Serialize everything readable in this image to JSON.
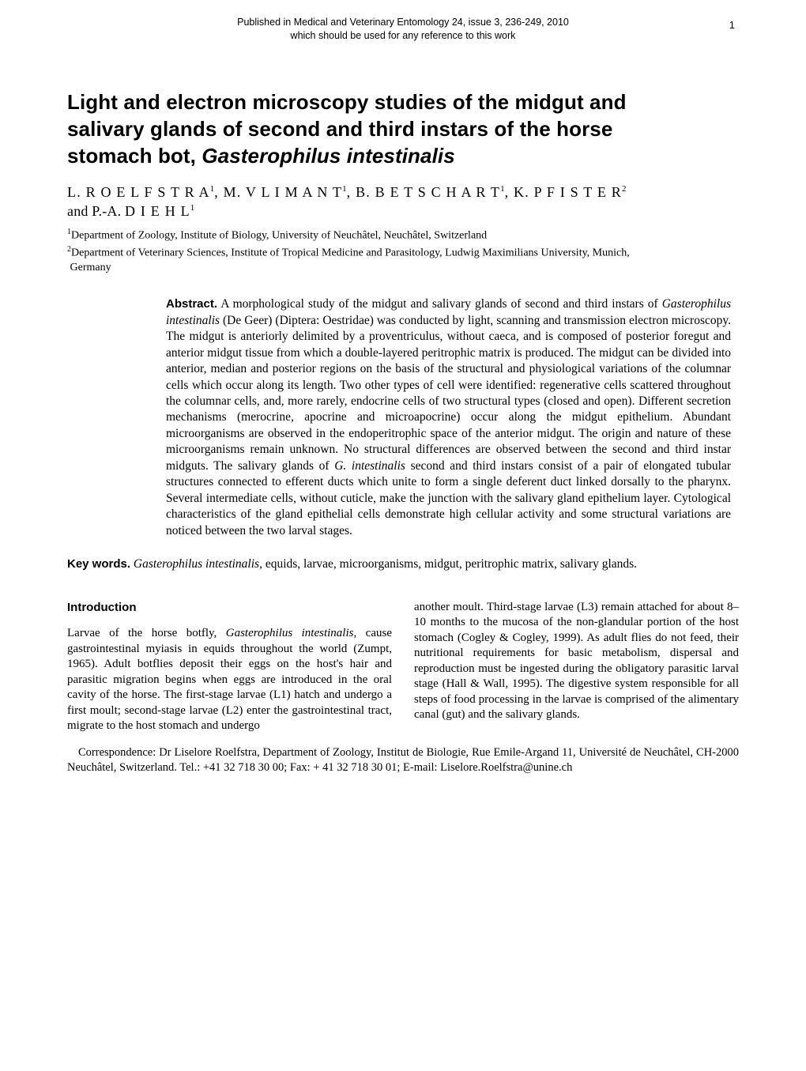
{
  "page_number": "1",
  "pub_header_line1": "Published in Medical and Veterinary Entomology 24, issue 3, 236-249, 2010",
  "pub_header_line2": "which should be used for any reference to this work",
  "title_l1": "Light and electron microscopy studies of the midgut and",
  "title_l2": "salivary glands of second and third instars of the horse",
  "title_l3_a": "stomach bot, ",
  "title_l3_b": "Gasterophilus intestinalis",
  "auth_a1": "L.  R O E L F S T R A",
  "auth_a2": ",  M.  V L I M A N T",
  "auth_a3": ",  B.  B E T S C H A R T",
  "auth_a4": ",  K.  P F I S T E R",
  "auth_and": "and  P.-A.  ",
  "auth_a5": "D I E H L",
  "aff1": "Department of Zoology, Institute of Biology, University of Neuchâtel, Neuchâtel, Switzerland",
  "aff2a": "Department of Veterinary Sciences, Institute of Tropical Medicine and Parasitology, Ludwig Maximilians University, Munich,",
  "aff2b": "Germany",
  "abs_label": "Abstract.",
  "abs_text_a": " A morphological study of the midgut and salivary glands of second and third instars of ",
  "abs_text_b": "Gasterophilus intestinalis",
  "abs_text_c": " (De Geer) (Diptera: Oestridae) was conducted by light, scanning and transmission electron microscopy. The midgut is anteriorly delimited by a proventriculus, without caeca, and is composed of posterior foregut and anterior midgut tissue from which a double-layered peritrophic matrix is produced. The midgut can be divided into anterior, median and posterior regions on the basis of the structural and physiological variations of the columnar cells which occur along its length. Two other types of cell were identified: regenerative cells scattered throughout the columnar cells, and, more rarely, endocrine cells of two structural types (closed and open). Different secretion mechanisms (merocrine, apocrine and microapocrine) occur along the midgut epithelium. Abundant microorganisms are observed in the endoperitrophic space of the anterior midgut. The origin and nature of these microorganisms remain unknown. No structural differences are observed between the second and third instar midguts. The salivary glands of ",
  "abs_text_d": "G. intestinalis",
  "abs_text_e": " second and third instars consist of a pair of elongated tubular structures connected to efferent ducts which unite to form a single deferent duct linked dorsally to the pharynx. Several intermediate cells, without cuticle, make the junction with the salivary gland epithelium layer. Cytological characteristics of the gland epithelial cells demonstrate high cellular activity and some structural variations are noticed between the two larval stages.",
  "kw_label": "Key words.",
  "kw_a": " ",
  "kw_b": "Gasterophilus intestinalis",
  "kw_c": ", equids, larvae, microorganisms, midgut, peritrophic matrix, salivary glands.",
  "intro_heading": "Introduction",
  "intro_left_a": "Larvae of the horse botfly, ",
  "intro_left_b": "Gasterophilus intestinalis",
  "intro_left_c": ", cause gastrointestinal myiasis in equids throughout the world (Zumpt, 1965). Adult botflies deposit their eggs on the host's hair and parasitic migration begins when eggs are introduced in the oral cavity of the horse. The first-stage larvae (L1) hatch and undergo a first moult; second-stage larvae (L2) enter the gastrointestinal tract, migrate to the host stomach and undergo",
  "intro_right": "another moult. Third-stage larvae (L3) remain attached for about 8–10 months to the mucosa of the non-glandular portion of the host stomach (Cogley & Cogley, 1999). As adult flies do not feed, their nutritional requirements for basic metabolism, dispersal and reproduction must be ingested during the obligatory parasitic larval stage (Hall & Wall, 1995). The digestive system responsible for all steps of food processing in the larvae is comprised of the alimentary canal (gut) and the salivary glands.",
  "correspondence": "Correspondence: Dr Liselore Roelfstra, Department of Zoology, Institut de Biologie, Rue Emile-Argand 11, Université de Neuchâtel, CH-2000 Neuchâtel, Switzerland. Tel.: +41 32 718 30 00; Fax: + 41 32 718 30 01; E-mail: Liselore.Roelfstra@unine.ch"
}
